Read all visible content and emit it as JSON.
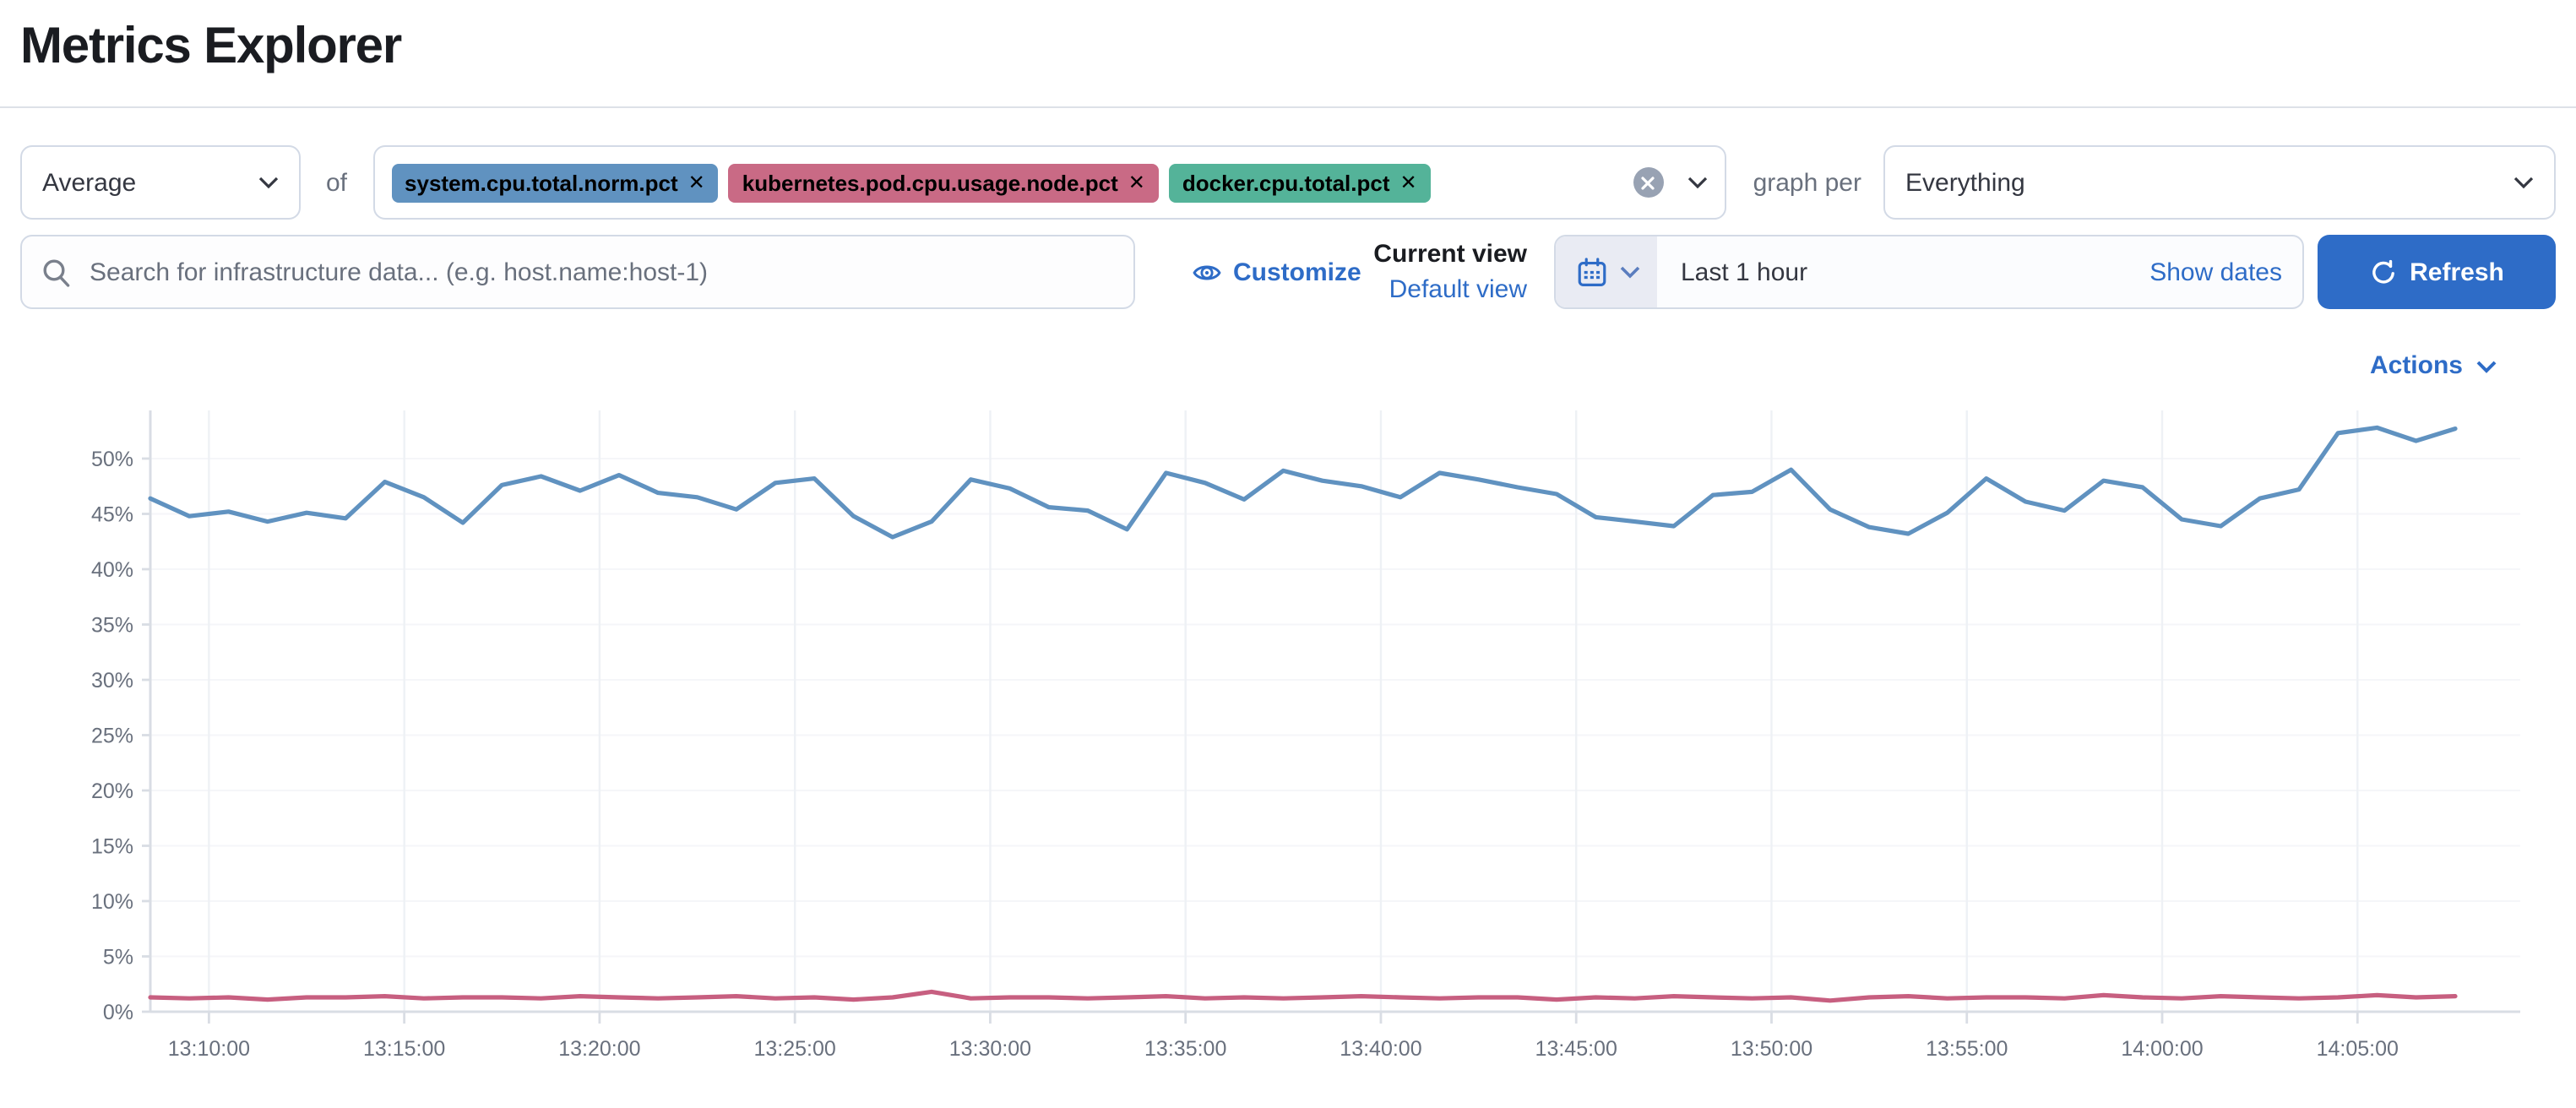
{
  "page": {
    "title": "Metrics Explorer"
  },
  "toolbar": {
    "aggregation": {
      "value": "Average"
    },
    "of_label": "of",
    "metrics": [
      {
        "label": "system.cpu.total.norm.pct",
        "color": "#6092C0"
      },
      {
        "label": "kubernetes.pod.cpu.usage.node.pct",
        "color": "#C96A85"
      },
      {
        "label": "docker.cpu.total.pct",
        "color": "#54B399"
      }
    ],
    "graph_per_label": "graph per",
    "group_by": {
      "value": "Everything"
    }
  },
  "search": {
    "placeholder": "Search for infrastructure data... (e.g. host.name:host-1)"
  },
  "view_controls": {
    "customize_label": "Customize",
    "current_view_label": "Current view",
    "view_name": "Default view"
  },
  "time_picker": {
    "value": "Last 1 hour",
    "show_dates_label": "Show dates",
    "refresh_label": "Refresh"
  },
  "actions": {
    "label": "Actions"
  },
  "colors": {
    "accent": "#2e6cc7",
    "line_blue": "#6092C0",
    "line_pink": "#C75F80",
    "axis": "#d9dde4",
    "grid_v": "#eef1f5",
    "grid_h": "#f5f6f9",
    "tick_text": "#69707d"
  },
  "chart_data": {
    "type": "line",
    "title": "",
    "xlabel": "",
    "ylabel": "",
    "legend": "none",
    "grid": true,
    "ylim": [
      0,
      54
    ],
    "xlim": [
      "13:08:30",
      "14:09:10"
    ],
    "y_ticks": [
      0,
      5,
      10,
      15,
      20,
      25,
      30,
      35,
      40,
      45,
      50
    ],
    "y_tick_suffix": "%",
    "x_tick_labels": [
      "13:10:00",
      "13:15:00",
      "13:20:00",
      "13:25:00",
      "13:30:00",
      "13:35:00",
      "13:40:00",
      "13:45:00",
      "13:50:00",
      "13:55:00",
      "14:00:00",
      "14:05:00"
    ],
    "x": [
      "13:08:30",
      "13:09:30",
      "13:10:30",
      "13:11:30",
      "13:12:30",
      "13:13:30",
      "13:14:30",
      "13:15:30",
      "13:16:30",
      "13:17:30",
      "13:18:30",
      "13:19:30",
      "13:20:30",
      "13:21:30",
      "13:22:30",
      "13:23:30",
      "13:24:30",
      "13:25:30",
      "13:26:30",
      "13:27:30",
      "13:28:30",
      "13:29:30",
      "13:30:30",
      "13:31:30",
      "13:32:30",
      "13:33:30",
      "13:34:30",
      "13:35:30",
      "13:36:30",
      "13:37:30",
      "13:38:30",
      "13:39:30",
      "13:40:30",
      "13:41:30",
      "13:42:30",
      "13:43:30",
      "13:44:30",
      "13:45:30",
      "13:46:30",
      "13:47:30",
      "13:48:30",
      "13:49:30",
      "13:50:30",
      "13:51:30",
      "13:52:30",
      "13:53:30",
      "13:54:30",
      "13:55:30",
      "13:56:30",
      "13:57:30",
      "13:58:30",
      "13:59:30",
      "14:00:30",
      "14:01:30",
      "14:02:30",
      "14:03:30",
      "14:04:30",
      "14:05:30",
      "14:06:30",
      "14:07:30"
    ],
    "series": [
      {
        "name": "Average system.cpu.total.norm.pct",
        "color": "#6092C0",
        "values": [
          46.4,
          44.8,
          45.2,
          44.3,
          45.1,
          44.6,
          47.9,
          46.5,
          44.2,
          47.6,
          48.4,
          47.1,
          48.5,
          46.9,
          46.5,
          45.4,
          47.8,
          48.2,
          44.8,
          42.9,
          44.3,
          48.1,
          47.3,
          45.6,
          45.3,
          43.6,
          48.7,
          47.8,
          46.3,
          48.9,
          48.0,
          47.5,
          46.5,
          48.7,
          48.1,
          47.4,
          46.8,
          44.7,
          44.3,
          43.9,
          46.7,
          47.0,
          49.0,
          45.4,
          43.8,
          43.2,
          45.1,
          48.2,
          46.1,
          45.3,
          48.0,
          47.4,
          44.5,
          43.9,
          46.4,
          47.2,
          52.3,
          52.8,
          51.6,
          52.7
        ]
      },
      {
        "name": "Average kubernetes.pod.cpu.usage.node.pct",
        "color": "#C75F80",
        "values": [
          1.3,
          1.2,
          1.3,
          1.1,
          1.3,
          1.3,
          1.4,
          1.2,
          1.3,
          1.3,
          1.2,
          1.4,
          1.3,
          1.2,
          1.3,
          1.4,
          1.2,
          1.3,
          1.1,
          1.3,
          1.8,
          1.2,
          1.3,
          1.3,
          1.2,
          1.3,
          1.4,
          1.2,
          1.3,
          1.2,
          1.3,
          1.4,
          1.3,
          1.2,
          1.3,
          1.3,
          1.1,
          1.3,
          1.2,
          1.4,
          1.3,
          1.2,
          1.3,
          1.0,
          1.3,
          1.4,
          1.2,
          1.3,
          1.3,
          1.2,
          1.5,
          1.3,
          1.2,
          1.4,
          1.3,
          1.2,
          1.3,
          1.5,
          1.3,
          1.4
        ]
      }
    ]
  }
}
